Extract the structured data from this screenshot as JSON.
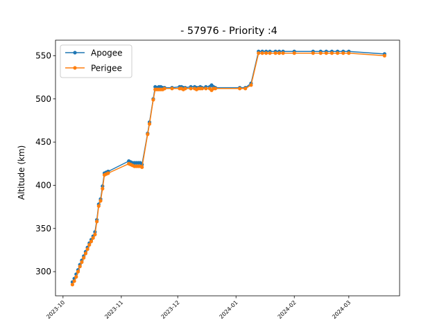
{
  "chart_data": {
    "type": "line",
    "title": "- 57976 - Priority :4",
    "xlabel": "",
    "ylabel": "Altitude (km)",
    "x_type": "date",
    "xlim": [
      "2023-09-27",
      "2024-03-28"
    ],
    "ylim": [
      272,
      568
    ],
    "x_ticks": [
      "2023-10-01",
      "2023-11-01",
      "2023-12-01",
      "2024-01-01",
      "2024-02-01",
      "2024-03-01"
    ],
    "x_tick_labels": [
      "2023-10",
      "2023-11",
      "2023-12",
      "2024-01",
      "2024-02",
      "2024-03"
    ],
    "y_ticks": [
      300,
      350,
      400,
      450,
      500,
      550
    ],
    "y_tick_labels": [
      "300",
      "350",
      "400",
      "450",
      "500",
      "550"
    ],
    "grid": false,
    "legend_position": "upper-left",
    "series": [
      {
        "name": "Apogee",
        "color": "#1f77b4",
        "x": [
          "2023-10-06",
          "2023-10-07",
          "2023-10-08",
          "2023-10-09",
          "2023-10-10",
          "2023-10-11",
          "2023-10-12",
          "2023-10-13",
          "2023-10-14",
          "2023-10-15",
          "2023-10-16",
          "2023-10-17",
          "2023-10-18",
          "2023-10-19",
          "2023-10-20",
          "2023-10-21",
          "2023-10-22",
          "2023-10-23",
          "2023-10-24",
          "2023-10-25",
          "2023-11-05",
          "2023-11-06",
          "2023-11-07",
          "2023-11-08",
          "2023-11-09",
          "2023-11-10",
          "2023-11-11",
          "2023-11-12",
          "2023-11-15",
          "2023-11-16",
          "2023-11-18",
          "2023-11-19",
          "2023-11-20",
          "2023-11-21",
          "2023-11-22",
          "2023-11-23",
          "2023-11-24",
          "2023-11-28",
          "2023-12-02",
          "2023-12-03",
          "2023-12-04",
          "2023-12-05",
          "2023-12-08",
          "2023-12-10",
          "2023-12-11",
          "2023-12-12",
          "2023-12-13",
          "2023-12-14",
          "2023-12-16",
          "2023-12-18",
          "2023-12-19",
          "2023-12-20",
          "2023-12-21",
          "2024-01-03",
          "2024-01-06",
          "2024-01-09",
          "2024-01-13",
          "2024-01-15",
          "2024-01-17",
          "2024-01-19",
          "2024-01-22",
          "2024-01-24",
          "2024-01-26",
          "2024-02-01",
          "2024-02-11",
          "2024-02-15",
          "2024-02-18",
          "2024-02-21",
          "2024-02-24",
          "2024-02-27",
          "2024-03-01",
          "2024-03-20"
        ],
        "y": [
          288,
          292,
          297,
          302,
          308,
          313,
          318,
          323,
          328,
          333,
          337,
          341,
          346,
          360,
          378,
          384,
          399,
          414,
          415,
          416,
          428,
          427,
          426,
          426,
          426,
          426,
          426,
          424,
          460,
          473,
          500,
          514,
          513,
          514,
          514,
          513,
          513,
          513,
          514,
          514,
          513,
          513,
          514,
          514,
          513,
          513,
          514,
          513,
          514,
          514,
          516,
          514,
          513,
          513,
          513,
          518,
          555,
          555,
          555,
          555,
          555,
          555,
          555,
          555,
          555,
          555,
          555,
          555,
          555,
          555,
          555,
          552
        ]
      },
      {
        "name": "Perigee",
        "color": "#ff7f0e",
        "x": [
          "2023-10-06",
          "2023-10-07",
          "2023-10-08",
          "2023-10-09",
          "2023-10-10",
          "2023-10-11",
          "2023-10-12",
          "2023-10-13",
          "2023-10-14",
          "2023-10-15",
          "2023-10-16",
          "2023-10-17",
          "2023-10-18",
          "2023-10-19",
          "2023-10-20",
          "2023-10-21",
          "2023-10-22",
          "2023-10-23",
          "2023-10-24",
          "2023-10-25",
          "2023-11-05",
          "2023-11-06",
          "2023-11-07",
          "2023-11-08",
          "2023-11-09",
          "2023-11-10",
          "2023-11-11",
          "2023-11-12",
          "2023-11-15",
          "2023-11-16",
          "2023-11-18",
          "2023-11-19",
          "2023-11-20",
          "2023-11-21",
          "2023-11-22",
          "2023-11-23",
          "2023-11-24",
          "2023-11-28",
          "2023-12-02",
          "2023-12-03",
          "2023-12-04",
          "2023-12-05",
          "2023-12-08",
          "2023-12-10",
          "2023-12-11",
          "2023-12-12",
          "2023-12-13",
          "2023-12-14",
          "2023-12-16",
          "2023-12-18",
          "2023-12-19",
          "2023-12-20",
          "2023-12-21",
          "2024-01-03",
          "2024-01-06",
          "2024-01-09",
          "2024-01-13",
          "2024-01-15",
          "2024-01-17",
          "2024-01-19",
          "2024-01-22",
          "2024-01-24",
          "2024-01-26",
          "2024-02-01",
          "2024-02-11",
          "2024-02-15",
          "2024-02-18",
          "2024-02-21",
          "2024-02-24",
          "2024-02-27",
          "2024-03-01",
          "2024-03-20"
        ],
        "y": [
          285,
          289,
          294,
          300,
          306,
          311,
          316,
          321,
          326,
          331,
          335,
          339,
          343,
          358,
          376,
          382,
          396,
          412,
          413,
          414,
          425,
          424,
          423,
          422,
          422,
          422,
          422,
          421,
          459,
          471,
          499,
          511,
          511,
          511,
          511,
          511,
          512,
          512,
          512,
          512,
          511,
          512,
          512,
          512,
          511,
          512,
          512,
          512,
          512,
          512,
          510,
          512,
          512,
          512,
          512,
          516,
          553,
          553,
          553,
          553,
          553,
          553,
          553,
          553,
          553,
          553,
          553,
          553,
          553,
          553,
          553,
          550
        ]
      }
    ]
  }
}
